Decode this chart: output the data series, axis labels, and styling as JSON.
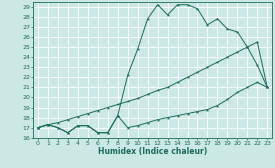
{
  "bg_color": "#cce8e4",
  "grid_color": "#ffffff",
  "line_color": "#1a6b5a",
  "xlabel": "Humidex (Indice chaleur)",
  "xlim": [
    -0.5,
    23.5
  ],
  "ylim": [
    16,
    29.5
  ],
  "xticks": [
    0,
    1,
    2,
    3,
    4,
    5,
    6,
    7,
    8,
    9,
    10,
    11,
    12,
    13,
    14,
    15,
    16,
    17,
    18,
    19,
    20,
    21,
    22,
    23
  ],
  "yticks": [
    16,
    17,
    18,
    19,
    20,
    21,
    22,
    23,
    24,
    25,
    26,
    27,
    28,
    29
  ],
  "line_zigzag_x": [
    0,
    1,
    2,
    3,
    4,
    5,
    6,
    7,
    8,
    9,
    10,
    11,
    12,
    13,
    14,
    15,
    16,
    17,
    18,
    19,
    20,
    21,
    22,
    23
  ],
  "line_zigzag_y": [
    17,
    17.3,
    17,
    16.5,
    17.2,
    17.2,
    16.5,
    16.5,
    18.2,
    17.0,
    17.2,
    17.5,
    17.8,
    18.0,
    18.2,
    18.4,
    18.6,
    18.8,
    19.2,
    19.8,
    20.5,
    21.0,
    21.5,
    21.0
  ],
  "line_straight_x": [
    0,
    1,
    2,
    3,
    4,
    5,
    6,
    7,
    8,
    9,
    10,
    11,
    12,
    13,
    14,
    15,
    16,
    17,
    18,
    19,
    20,
    21,
    22,
    23
  ],
  "line_straight_y": [
    17,
    17.3,
    17.5,
    17.8,
    18.1,
    18.4,
    18.7,
    19.0,
    19.3,
    19.6,
    19.9,
    20.3,
    20.7,
    21.0,
    21.5,
    22.0,
    22.5,
    23.0,
    23.5,
    24.0,
    24.5,
    25.0,
    25.5,
    21.0
  ],
  "line_peak_x": [
    0,
    1,
    2,
    3,
    4,
    5,
    6,
    7,
    8,
    9,
    10,
    11,
    12,
    13,
    14,
    15,
    16,
    17,
    18,
    19,
    20,
    21,
    22,
    23
  ],
  "line_peak_y": [
    17,
    17.3,
    17,
    16.5,
    17.2,
    17.2,
    16.5,
    16.5,
    18.2,
    22.2,
    24.8,
    27.8,
    29.2,
    28.2,
    29.2,
    29.2,
    28.8,
    27.2,
    27.8,
    26.8,
    26.5,
    25,
    23.2,
    21
  ]
}
